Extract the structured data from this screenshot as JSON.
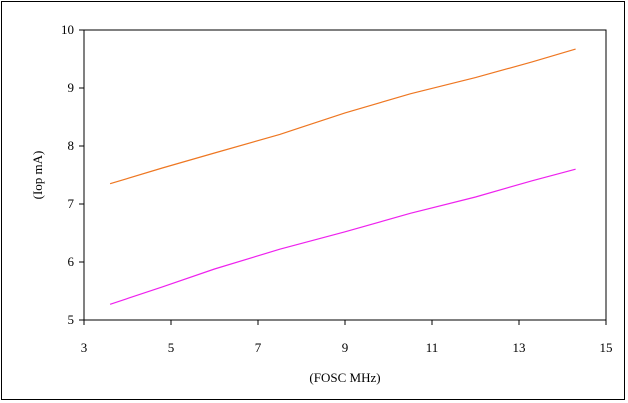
{
  "chart_data": {
    "type": "line",
    "title": "",
    "xlabel": "(FOSC MHz)",
    "ylabel": "(Iop mA)",
    "xlim": [
      3,
      15
    ],
    "ylim": [
      5,
      10
    ],
    "xticks": [
      3,
      5,
      7,
      9,
      11,
      13,
      15
    ],
    "yticks": [
      5,
      6,
      7,
      8,
      9,
      10
    ],
    "grid": false,
    "legend": "none",
    "series": [
      {
        "color": "#ee7722",
        "x": [
          3.6,
          4.8,
          6.0,
          7.5,
          9.0,
          10.5,
          12.0,
          13.3,
          14.3
        ],
        "y": [
          7.35,
          7.62,
          7.88,
          8.2,
          8.57,
          8.9,
          9.18,
          9.45,
          9.67
        ]
      },
      {
        "color": "#ee22ee",
        "x": [
          3.6,
          4.8,
          6.0,
          7.5,
          9.0,
          10.5,
          12.0,
          13.3,
          14.3
        ],
        "y": [
          5.27,
          5.57,
          5.88,
          6.22,
          6.52,
          6.84,
          7.12,
          7.4,
          7.6
        ]
      }
    ]
  }
}
